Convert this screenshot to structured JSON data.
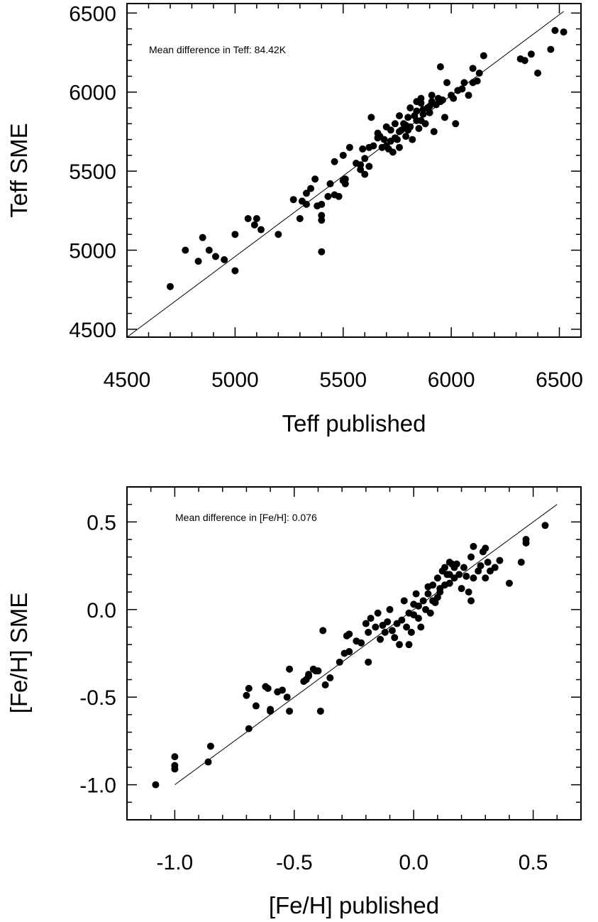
{
  "chart_data": [
    {
      "type": "scatter",
      "title": "",
      "xlabel": "Teff published",
      "ylabel": "Teff SME",
      "xlim": [
        4500,
        6600
      ],
      "ylim": [
        4450,
        6560
      ],
      "xticks": [
        4500,
        5000,
        5500,
        6000,
        6500
      ],
      "yticks": [
        4500,
        5000,
        5500,
        6000,
        6500
      ],
      "x_tick_labels": [
        "4500",
        "5000",
        "5500",
        "6000",
        "6500"
      ],
      "y_tick_labels": [
        "4500",
        "5000",
        "5500",
        "6000",
        "6500"
      ],
      "grid": false,
      "annotation": "Mean difference in Teff: 84.42K",
      "reference_line": {
        "from": [
          4500,
          4450
        ],
        "to": [
          6520,
          6510
        ]
      },
      "points": [
        [
          4700,
          4770
        ],
        [
          4770,
          5000
        ],
        [
          4830,
          4930
        ],
        [
          4850,
          5080
        ],
        [
          4880,
          5000
        ],
        [
          4910,
          4960
        ],
        [
          4950,
          4940
        ],
        [
          5000,
          4870
        ],
        [
          5000,
          5100
        ],
        [
          5060,
          5200
        ],
        [
          5090,
          5160
        ],
        [
          5100,
          5200
        ],
        [
          5120,
          5130
        ],
        [
          5200,
          5100
        ],
        [
          5270,
          5320
        ],
        [
          5300,
          5200
        ],
        [
          5310,
          5310
        ],
        [
          5330,
          5290
        ],
        [
          5330,
          5360
        ],
        [
          5350,
          5390
        ],
        [
          5370,
          5450
        ],
        [
          5380,
          5280
        ],
        [
          5400,
          5290
        ],
        [
          5400,
          5220
        ],
        [
          5400,
          5190
        ],
        [
          5400,
          4990
        ],
        [
          5430,
          5340
        ],
        [
          5440,
          5420
        ],
        [
          5460,
          5350
        ],
        [
          5460,
          5560
        ],
        [
          5480,
          5340
        ],
        [
          5500,
          5440
        ],
        [
          5500,
          5600
        ],
        [
          5510,
          5420
        ],
        [
          5530,
          5650
        ],
        [
          5560,
          5550
        ],
        [
          5580,
          5510
        ],
        [
          5590,
          5640
        ],
        [
          5600,
          5580
        ],
        [
          5600,
          5480
        ],
        [
          5620,
          5650
        ],
        [
          5620,
          5530
        ],
        [
          5630,
          5840
        ],
        [
          5640,
          5660
        ],
        [
          5660,
          5740
        ],
        [
          5670,
          5720
        ],
        [
          5680,
          5650
        ],
        [
          5690,
          5700
        ],
        [
          5700,
          5660
        ],
        [
          5700,
          5780
        ],
        [
          5710,
          5640
        ],
        [
          5720,
          5760
        ],
        [
          5730,
          5620
        ],
        [
          5740,
          5710
        ],
        [
          5740,
          5800
        ],
        [
          5750,
          5700
        ],
        [
          5760,
          5650
        ],
        [
          5760,
          5850
        ],
        [
          5770,
          5760
        ],
        [
          5780,
          5800
        ],
        [
          5790,
          5720
        ],
        [
          5800,
          5840
        ],
        [
          5800,
          5760
        ],
        [
          5810,
          5780
        ],
        [
          5820,
          5700
        ],
        [
          5830,
          5850
        ],
        [
          5840,
          5880
        ],
        [
          5840,
          5820
        ],
        [
          5850,
          5770
        ],
        [
          5860,
          5930
        ],
        [
          5860,
          5960
        ],
        [
          5870,
          5860
        ],
        [
          5880,
          5800
        ],
        [
          5890,
          5900
        ],
        [
          5900,
          5870
        ],
        [
          5910,
          5940
        ],
        [
          5910,
          5980
        ],
        [
          5920,
          5750
        ],
        [
          5930,
          5920
        ],
        [
          5940,
          5960
        ],
        [
          5950,
          6160
        ],
        [
          5960,
          5950
        ],
        [
          5970,
          5840
        ],
        [
          5980,
          6060
        ],
        [
          6000,
          5980
        ],
        [
          6010,
          5960
        ],
        [
          6020,
          5800
        ],
        [
          6030,
          6010
        ],
        [
          6050,
          6020
        ],
        [
          6060,
          6060
        ],
        [
          6080,
          5980
        ],
        [
          6100,
          6060
        ],
        [
          6100,
          6150
        ],
        [
          6120,
          6070
        ],
        [
          6130,
          6120
        ],
        [
          6150,
          6230
        ],
        [
          6320,
          6210
        ],
        [
          6340,
          6200
        ],
        [
          6370,
          6240
        ],
        [
          6400,
          6120
        ],
        [
          6460,
          6270
        ],
        [
          6480,
          6390
        ],
        [
          6520,
          6380
        ],
        [
          5510,
          5450
        ],
        [
          5660,
          5710
        ],
        [
          5810,
          5900
        ],
        [
          5870,
          5890
        ],
        [
          5950,
          5940
        ],
        [
          5790,
          5790
        ],
        [
          5720,
          5690
        ],
        [
          5860,
          5820
        ],
        [
          5900,
          5910
        ],
        [
          5580,
          5540
        ],
        [
          5760,
          5750
        ],
        [
          5840,
          5940
        ]
      ]
    },
    {
      "type": "scatter",
      "title": "",
      "xlabel": "[Fe/H] published",
      "ylabel": "[Fe/H] SME",
      "xlim": [
        -1.2,
        0.7
      ],
      "ylim": [
        -1.2,
        0.7
      ],
      "xticks": [
        -1.0,
        -0.5,
        0.0,
        0.5
      ],
      "yticks": [
        -1.0,
        -0.5,
        0.0,
        0.5
      ],
      "x_tick_labels": [
        "-1.0",
        "-0.5",
        "0.0",
        "0.5"
      ],
      "y_tick_labels": [
        "-1.0",
        "-0.5",
        "0.0",
        "0.5"
      ],
      "grid": false,
      "annotation": "Mean difference in [Fe/H]: 0.076",
      "reference_line": {
        "from": [
          -1.0,
          -1.0
        ],
        "to": [
          0.6,
          0.6
        ]
      },
      "points": [
        [
          -1.08,
          -1.0
        ],
        [
          -1.0,
          -0.91
        ],
        [
          -1.0,
          -0.89
        ],
        [
          -1.0,
          -0.84
        ],
        [
          -0.86,
          -0.87
        ],
        [
          -0.85,
          -0.78
        ],
        [
          -0.69,
          -0.68
        ],
        [
          -0.7,
          -0.49
        ],
        [
          -0.69,
          -0.45
        ],
        [
          -0.66,
          -0.55
        ],
        [
          -0.62,
          -0.44
        ],
        [
          -0.61,
          -0.45
        ],
        [
          -0.6,
          -0.58
        ],
        [
          -0.6,
          -0.57
        ],
        [
          -0.57,
          -0.47
        ],
        [
          -0.55,
          -0.46
        ],
        [
          -0.53,
          -0.5
        ],
        [
          -0.52,
          -0.34
        ],
        [
          -0.52,
          -0.58
        ],
        [
          -0.46,
          -0.41
        ],
        [
          -0.45,
          -0.4
        ],
        [
          -0.44,
          -0.38
        ],
        [
          -0.42,
          -0.34
        ],
        [
          -0.41,
          -0.35
        ],
        [
          -0.4,
          -0.35
        ],
        [
          -0.39,
          -0.58
        ],
        [
          -0.38,
          -0.12
        ],
        [
          -0.37,
          -0.43
        ],
        [
          -0.35,
          -0.39
        ],
        [
          -0.31,
          -0.3
        ],
        [
          -0.29,
          -0.25
        ],
        [
          -0.28,
          -0.15
        ],
        [
          -0.27,
          -0.14
        ],
        [
          -0.27,
          -0.24
        ],
        [
          -0.24,
          -0.18
        ],
        [
          -0.22,
          -0.19
        ],
        [
          -0.2,
          -0.08
        ],
        [
          -0.19,
          -0.13
        ],
        [
          -0.19,
          -0.3
        ],
        [
          -0.18,
          -0.05
        ],
        [
          -0.16,
          -0.1
        ],
        [
          -0.15,
          -0.02
        ],
        [
          -0.14,
          -0.17
        ],
        [
          -0.12,
          -0.13
        ],
        [
          -0.11,
          -0.07
        ],
        [
          -0.1,
          0.0
        ],
        [
          -0.09,
          -0.12
        ],
        [
          -0.08,
          -0.16
        ],
        [
          -0.07,
          -0.08
        ],
        [
          -0.06,
          -0.2
        ],
        [
          -0.05,
          -0.06
        ],
        [
          -0.04,
          0.05
        ],
        [
          -0.03,
          -0.1
        ],
        [
          -0.02,
          -0.2
        ],
        [
          -0.01,
          -0.13
        ],
        [
          0.0,
          -0.03
        ],
        [
          0.0,
          0.03
        ],
        [
          0.01,
          0.09
        ],
        [
          0.02,
          -0.05
        ],
        [
          0.03,
          -0.1
        ],
        [
          0.04,
          0.05
        ],
        [
          0.05,
          0.0
        ],
        [
          0.06,
          0.09
        ],
        [
          0.07,
          -0.02
        ],
        [
          0.08,
          0.14
        ],
        [
          0.09,
          0.04
        ],
        [
          0.1,
          0.18
        ],
        [
          0.1,
          0.07
        ],
        [
          0.11,
          0.1
        ],
        [
          0.12,
          0.22
        ],
        [
          0.13,
          0.14
        ],
        [
          0.13,
          0.24
        ],
        [
          0.14,
          0.2
        ],
        [
          0.15,
          0.27
        ],
        [
          0.15,
          0.15
        ],
        [
          0.16,
          0.26
        ],
        [
          0.17,
          0.18
        ],
        [
          0.17,
          0.24
        ],
        [
          0.18,
          0.26
        ],
        [
          0.19,
          0.2
        ],
        [
          0.2,
          0.12
        ],
        [
          0.21,
          0.24
        ],
        [
          0.22,
          0.19
        ],
        [
          0.23,
          0.1
        ],
        [
          0.24,
          0.3
        ],
        [
          0.24,
          0.05
        ],
        [
          0.25,
          0.18
        ],
        [
          0.25,
          0.36
        ],
        [
          0.27,
          0.22
        ],
        [
          0.28,
          0.25
        ],
        [
          0.29,
          0.33
        ],
        [
          0.3,
          0.35
        ],
        [
          0.3,
          0.18
        ],
        [
          0.31,
          0.27
        ],
        [
          0.32,
          0.22
        ],
        [
          0.34,
          0.24
        ],
        [
          0.36,
          0.28
        ],
        [
          0.4,
          0.15
        ],
        [
          0.45,
          0.27
        ],
        [
          0.47,
          0.38
        ],
        [
          0.47,
          0.4
        ],
        [
          0.55,
          0.48
        ],
        [
          -0.02,
          -0.02
        ],
        [
          0.08,
          0.05
        ],
        [
          -0.13,
          -0.09
        ],
        [
          0.11,
          0.12
        ],
        [
          0.15,
          0.2
        ],
        [
          -0.44,
          -0.37
        ],
        [
          0.06,
          0.13
        ],
        [
          0.02,
          0.02
        ]
      ]
    }
  ]
}
